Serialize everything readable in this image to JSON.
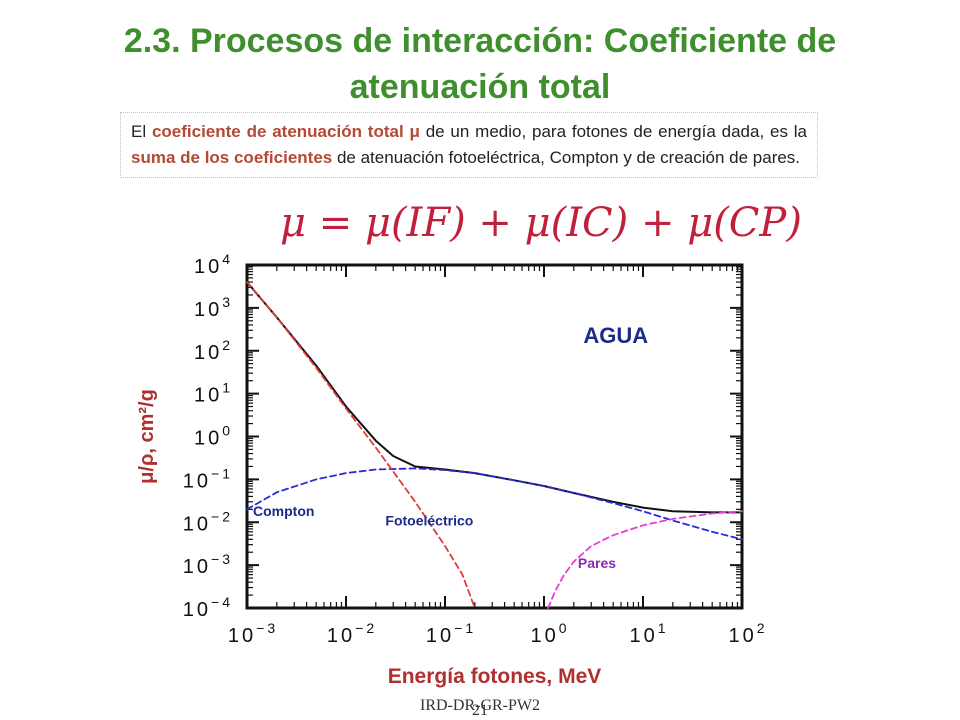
{
  "title": "2.3. Procesos de interacción: Coeficiente de atenuación total",
  "body_text": {
    "t1": "El ",
    "h1": "coeficiente de atenuación total μ",
    "t2": " de un medio, para fotones de energía dada, es la ",
    "h2": "suma de los coeficientes",
    "t3": " de atenuación fotoeléctrica, Compton y de creación de pares."
  },
  "formula": "μ = μ(IF) + μ(IC) + μ(CP)",
  "colors": {
    "title": "#3f8f2f",
    "highlight": "#b24a36",
    "formula": "#c0203a",
    "total": "#111111",
    "compton": "#2b2bd6",
    "fotoelectrico": "#e03a3a",
    "pares": "#ea3ae0",
    "ylabel": "#b03030",
    "xlabel": "#b03030",
    "agua": "#1c2a8a"
  },
  "chart_data": {
    "type": "line",
    "title": "AGUA",
    "xlabel": "Energía fotones, MeV",
    "ylabel": "μ/ρ, cm²/g",
    "xscale": "log",
    "yscale": "log",
    "xlim": [
      0.001,
      100
    ],
    "ylim": [
      0.0001,
      10000
    ],
    "x_ticks": [
      0.001,
      0.01,
      0.1,
      1,
      10,
      100
    ],
    "y_ticks": [
      0.0001,
      0.001,
      0.01,
      0.1,
      1,
      10,
      100,
      1000,
      10000
    ],
    "x_tick_labels": [
      {
        "base": "10",
        "exp": "−3"
      },
      {
        "base": "10",
        "exp": "−2"
      },
      {
        "base": "10",
        "exp": "−1"
      },
      {
        "base": "10",
        "exp": "0"
      },
      {
        "base": "10",
        "exp": "1"
      },
      {
        "base": "10",
        "exp": "2"
      }
    ],
    "y_tick_labels": [
      {
        "base": "10",
        "exp": "−4"
      },
      {
        "base": "10",
        "exp": "−3"
      },
      {
        "base": "10",
        "exp": "−2"
      },
      {
        "base": "10",
        "exp": "−1"
      },
      {
        "base": "10",
        "exp": "0"
      },
      {
        "base": "10",
        "exp": "1"
      },
      {
        "base": "10",
        "exp": "2"
      },
      {
        "base": "10",
        "exp": "3"
      },
      {
        "base": "10",
        "exp": "4"
      }
    ],
    "series": [
      {
        "key": "total",
        "style": "solid",
        "x": [
          0.001,
          0.002,
          0.005,
          0.01,
          0.02,
          0.03,
          0.05,
          0.1,
          0.2,
          0.5,
          1,
          2,
          5,
          10,
          20,
          50,
          100
        ],
        "y": [
          4000,
          600,
          45,
          5,
          0.8,
          0.35,
          0.2,
          0.17,
          0.14,
          0.095,
          0.07,
          0.048,
          0.03,
          0.022,
          0.018,
          0.017,
          0.017
        ]
      },
      {
        "key": "compton",
        "name": "Compton",
        "style": "dashed",
        "x": [
          0.001,
          0.002,
          0.005,
          0.01,
          0.02,
          0.05,
          0.1,
          0.2,
          0.5,
          1,
          2,
          5,
          10,
          20,
          50,
          100
        ],
        "y": [
          0.02,
          0.05,
          0.1,
          0.14,
          0.17,
          0.18,
          0.165,
          0.14,
          0.095,
          0.07,
          0.048,
          0.028,
          0.018,
          0.011,
          0.006,
          0.004
        ]
      },
      {
        "key": "fotoelectrico",
        "name": "Fotoeléctrico",
        "style": "dashed",
        "x": [
          0.001,
          0.002,
          0.005,
          0.01,
          0.02,
          0.05,
          0.1,
          0.15,
          0.2
        ],
        "y": [
          4000,
          600,
          40,
          4.5,
          0.55,
          0.03,
          0.0028,
          0.0006,
          0.0001
        ]
      },
      {
        "key": "pares",
        "name": "Pares",
        "style": "dashed",
        "x": [
          1.1,
          1.3,
          1.6,
          2,
          3,
          5,
          10,
          20,
          50,
          100
        ],
        "y": [
          0.0001,
          0.00025,
          0.0006,
          0.0012,
          0.0028,
          0.005,
          0.0085,
          0.012,
          0.016,
          0.018
        ]
      }
    ],
    "annotations": [
      {
        "key": "agua",
        "text": "AGUA",
        "x": 2.5,
        "y": 150
      },
      {
        "key": "compton",
        "text": "Compton",
        "x": 0.00115,
        "y": 0.014
      },
      {
        "key": "fotoelectrico",
        "text": "Fotoeléctrico",
        "x": 0.025,
        "y": 0.0085
      },
      {
        "key": "pares",
        "text": "Pares",
        "x": 2.2,
        "y": 0.00085
      }
    ]
  },
  "footer": {
    "text": "IRD-DR-GR-PW2",
    "page": "21"
  }
}
